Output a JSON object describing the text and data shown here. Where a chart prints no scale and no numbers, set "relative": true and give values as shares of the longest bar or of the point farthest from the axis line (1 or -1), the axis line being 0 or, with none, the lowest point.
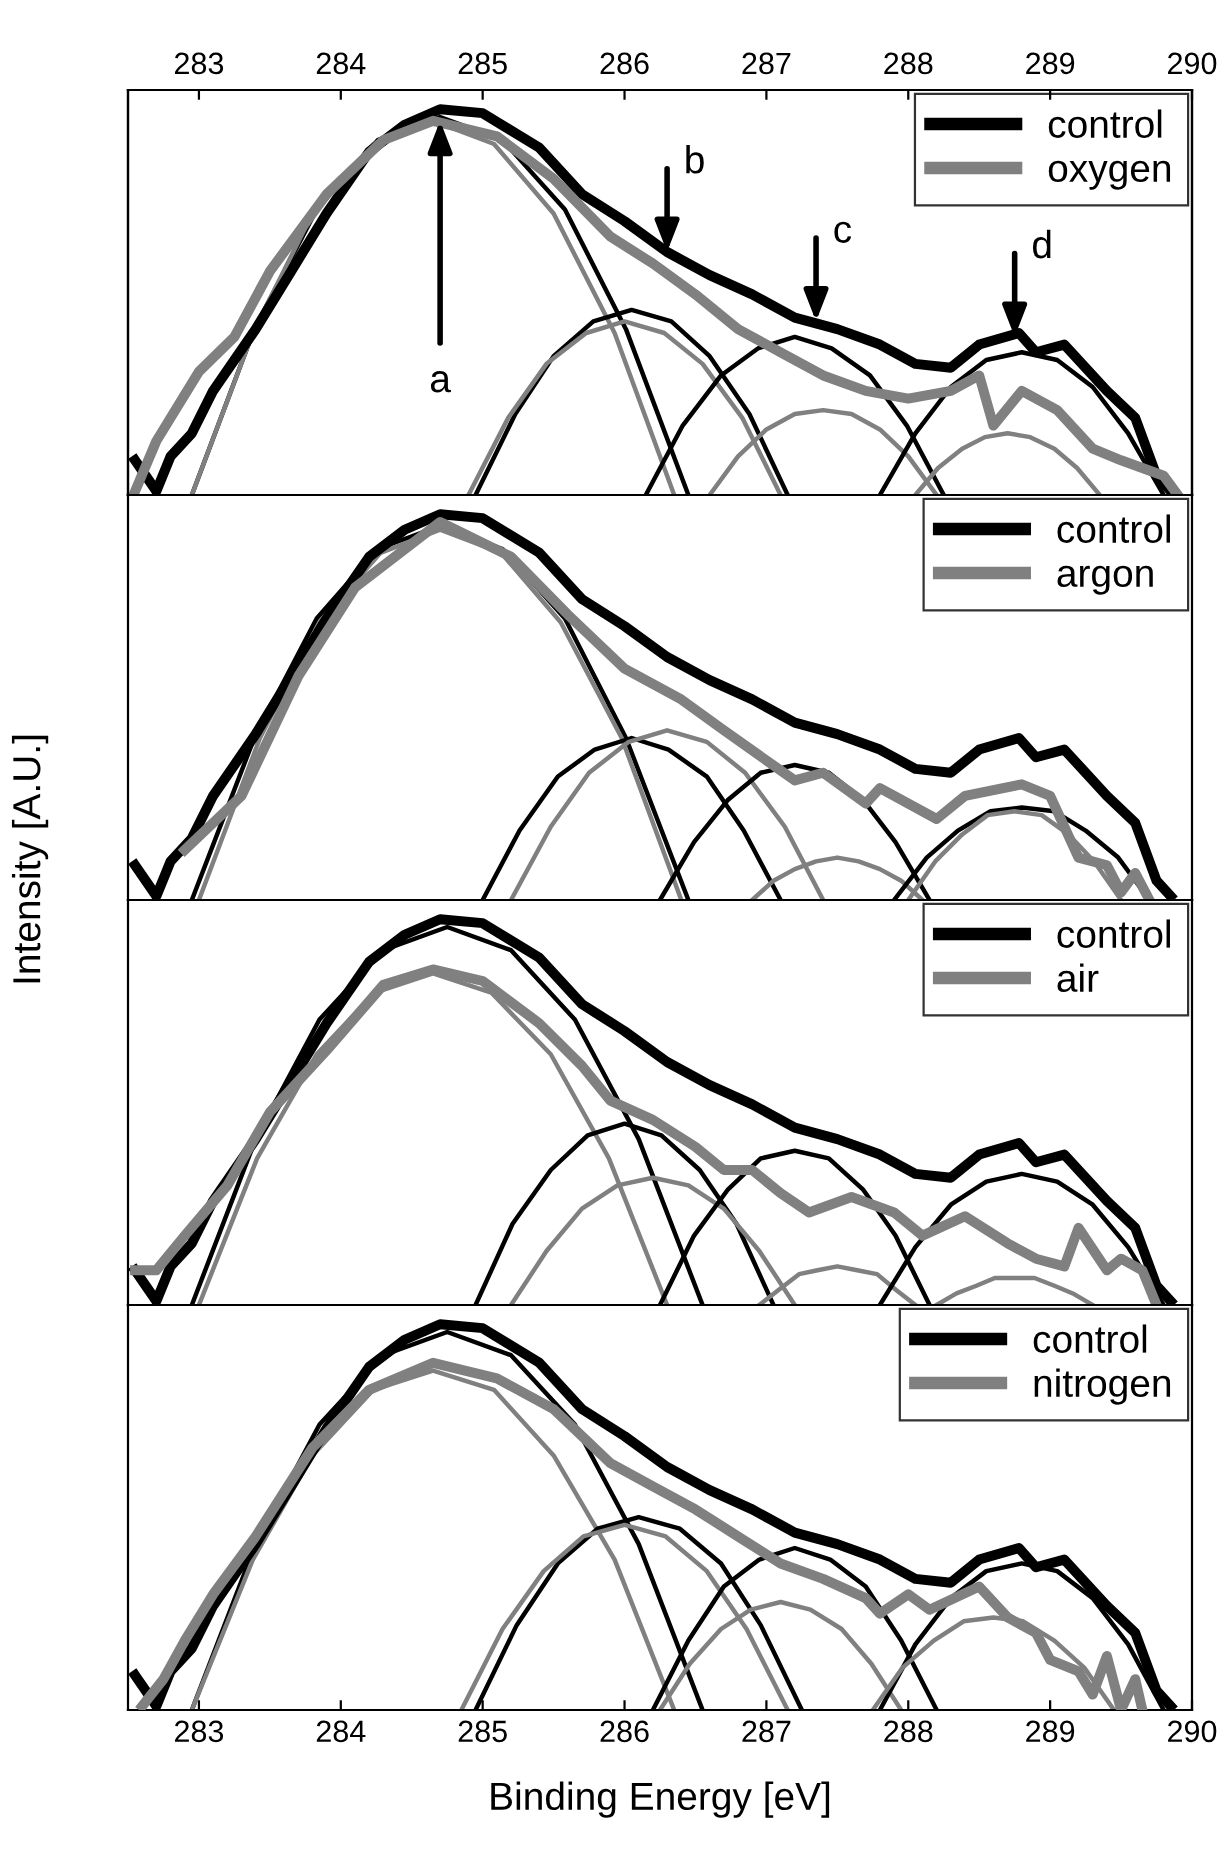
{
  "chart_data": [
    {
      "type": "line",
      "relative": true,
      "xlim": [
        282.5,
        290
      ],
      "x2lim": [
        282.5,
        290
      ],
      "x2ticks": [
        283,
        284,
        285,
        286,
        287,
        288,
        289,
        290
      ],
      "tick_labels": "x2",
      "legend": "top right",
      "grid": false,
      "marker": "none",
      "line_style": "solid",
      "annotations": [
        {
          "text": "a",
          "x": 284.7,
          "y": 0.97
        },
        {
          "text": "b",
          "x": 286.3,
          "y": 0.63
        },
        {
          "text": "c",
          "x": 287.35,
          "y": 0.45
        },
        {
          "text": "d",
          "x": 288.75,
          "y": 0.41
        }
      ],
      "series": [
        {
          "name": "control",
          "color": "#000000",
          "x": [
            282.55,
            282.7,
            282.8,
            282.95,
            283.1,
            283.4,
            283.65,
            283.9,
            284.2,
            284.45,
            284.7,
            285.0,
            285.4,
            285.7,
            286.0,
            286.3,
            286.6,
            286.9,
            287.2,
            287.5,
            287.8,
            288.05,
            288.3,
            288.5,
            288.78,
            288.9,
            289.1,
            289.4,
            289.6,
            289.75,
            289.85
          ],
          "values": [
            0.09,
            0.01,
            0.1,
            0.16,
            0.27,
            0.43,
            0.58,
            0.73,
            0.89,
            0.96,
            1.0,
            0.99,
            0.9,
            0.78,
            0.71,
            0.63,
            0.57,
            0.52,
            0.46,
            0.43,
            0.39,
            0.34,
            0.33,
            0.39,
            0.42,
            0.37,
            0.39,
            0.27,
            0.2,
            0.05,
            0.01
          ]
        },
        {
          "name": "oxygen",
          "color": "#808080",
          "x": [
            282.55,
            282.7,
            283.0,
            283.25,
            283.5,
            283.9,
            284.3,
            284.65,
            285.1,
            285.5,
            285.9,
            286.2,
            286.5,
            286.8,
            287.1,
            287.4,
            287.7,
            288.0,
            288.3,
            288.5,
            288.6,
            288.8,
            289.05,
            289.3,
            289.5,
            289.65,
            289.8,
            289.9
          ],
          "values": [
            0.01,
            0.14,
            0.32,
            0.41,
            0.58,
            0.78,
            0.92,
            0.97,
            0.93,
            0.82,
            0.67,
            0.6,
            0.52,
            0.43,
            0.37,
            0.31,
            0.27,
            0.25,
            0.27,
            0.31,
            0.18,
            0.27,
            0.22,
            0.12,
            0.09,
            0.07,
            0.05,
            0.0
          ]
        },
        {
          "color": "#000000",
          "x": [
            282.95,
            283.39,
            283.83,
            284.26,
            284.7,
            285.14,
            285.58,
            286.01,
            286.45
          ],
          "values": [
            0,
            0.43,
            0.74,
            0.92,
            0.98,
            0.92,
            0.74,
            0.43,
            0
          ]
        },
        {
          "color": "#808080",
          "x": [
            282.95,
            283.38,
            283.8,
            284.23,
            284.65,
            285.08,
            285.5,
            285.93,
            286.35
          ],
          "values": [
            0,
            0.42,
            0.73,
            0.91,
            0.97,
            0.91,
            0.73,
            0.42,
            0
          ]
        },
        {
          "color": "#000000",
          "x": [
            284.95,
            285.23,
            285.5,
            285.78,
            286.05,
            286.33,
            286.6,
            286.88,
            287.15
          ],
          "values": [
            0,
            0.21,
            0.36,
            0.45,
            0.48,
            0.45,
            0.36,
            0.21,
            0
          ]
        },
        {
          "color": "#808080",
          "x": [
            284.9,
            285.18,
            285.45,
            285.73,
            286.0,
            286.28,
            286.55,
            286.83,
            287.1
          ],
          "values": [
            0,
            0.2,
            0.34,
            0.42,
            0.45,
            0.42,
            0.34,
            0.2,
            0
          ]
        },
        {
          "color": "#000000",
          "x": [
            286.15,
            286.41,
            286.68,
            286.94,
            287.2,
            287.46,
            287.73,
            287.99,
            288.25
          ],
          "values": [
            0,
            0.18,
            0.31,
            0.38,
            0.41,
            0.38,
            0.31,
            0.18,
            0
          ]
        },
        {
          "color": "#808080",
          "x": [
            286.6,
            286.8,
            287.0,
            287.2,
            287.4,
            287.6,
            287.8,
            288.0,
            288.2
          ],
          "values": [
            0,
            0.1,
            0.17,
            0.21,
            0.22,
            0.21,
            0.17,
            0.1,
            0
          ]
        },
        {
          "color": "#000000",
          "x": [
            287.8,
            288.05,
            288.3,
            288.55,
            288.8,
            289.05,
            289.3,
            289.55,
            289.8
          ],
          "values": [
            0,
            0.16,
            0.28,
            0.35,
            0.37,
            0.35,
            0.28,
            0.16,
            0
          ]
        },
        {
          "color": "#808080",
          "x": [
            288.05,
            288.21,
            288.38,
            288.54,
            288.7,
            288.86,
            289.03,
            289.19,
            289.35
          ],
          "values": [
            0,
            0.07,
            0.12,
            0.15,
            0.16,
            0.15,
            0.12,
            0.07,
            0
          ]
        }
      ]
    },
    {
      "type": "line",
      "relative": true,
      "ylabel": "Intensity [A.U.]",
      "xlim": [
        282.5,
        290
      ],
      "tick_labels": false,
      "legend": "top right",
      "grid": false,
      "marker": "none",
      "line_style": "solid",
      "series": [
        {
          "name": "control",
          "color": "#000000",
          "x": [
            282.55,
            282.7,
            282.8,
            282.95,
            283.1,
            283.4,
            283.65,
            283.9,
            284.2,
            284.45,
            284.7,
            285.0,
            285.4,
            285.7,
            286.0,
            286.3,
            286.6,
            286.9,
            287.2,
            287.5,
            287.8,
            288.05,
            288.3,
            288.5,
            288.78,
            288.9,
            289.1,
            289.4,
            289.6,
            289.75,
            289.85
          ],
          "values": [
            0.09,
            0.01,
            0.1,
            0.16,
            0.27,
            0.43,
            0.58,
            0.73,
            0.89,
            0.96,
            1.0,
            0.99,
            0.9,
            0.78,
            0.71,
            0.63,
            0.57,
            0.52,
            0.46,
            0.43,
            0.39,
            0.34,
            0.33,
            0.39,
            0.42,
            0.37,
            0.39,
            0.27,
            0.2,
            0.05,
            0.01
          ]
        },
        {
          "name": "argon",
          "color": "#808080",
          "x": [
            282.9,
            283.3,
            283.7,
            284.1,
            284.7,
            285.2,
            285.6,
            286.0,
            286.4,
            286.7,
            287.2,
            287.4,
            287.7,
            287.8,
            288.2,
            288.4,
            288.8,
            289.0,
            289.2,
            289.4,
            289.5,
            289.6,
            289.7
          ],
          "values": [
            0.13,
            0.27,
            0.58,
            0.81,
            0.98,
            0.89,
            0.74,
            0.6,
            0.52,
            0.44,
            0.31,
            0.33,
            0.25,
            0.29,
            0.21,
            0.27,
            0.3,
            0.27,
            0.11,
            0.09,
            0.02,
            0.07,
            0.0
          ]
        },
        {
          "color": "#000000",
          "x": [
            282.95,
            283.39,
            283.83,
            284.26,
            284.7,
            285.14,
            285.58,
            286.01,
            286.45
          ],
          "values": [
            0,
            0.42,
            0.73,
            0.91,
            0.97,
            0.91,
            0.73,
            0.42,
            0
          ]
        },
        {
          "color": "#808080",
          "x": [
            283.0,
            283.43,
            283.85,
            284.28,
            284.7,
            285.13,
            285.55,
            285.98,
            286.4
          ],
          "values": [
            0,
            0.42,
            0.72,
            0.9,
            0.96,
            0.9,
            0.72,
            0.42,
            0
          ]
        },
        {
          "color": "#000000",
          "x": [
            285.0,
            285.26,
            285.53,
            285.79,
            286.05,
            286.31,
            286.58,
            286.84,
            287.1
          ],
          "values": [
            0,
            0.18,
            0.32,
            0.39,
            0.42,
            0.39,
            0.32,
            0.18,
            0
          ]
        },
        {
          "color": "#808080",
          "x": [
            285.2,
            285.48,
            285.75,
            286.03,
            286.3,
            286.58,
            286.85,
            287.13,
            287.4
          ],
          "values": [
            0,
            0.19,
            0.33,
            0.41,
            0.44,
            0.41,
            0.33,
            0.19,
            0
          ]
        },
        {
          "color": "#000000",
          "x": [
            286.25,
            286.49,
            286.73,
            286.96,
            287.2,
            287.44,
            287.68,
            287.91,
            288.15
          ],
          "values": [
            0,
            0.15,
            0.26,
            0.33,
            0.35,
            0.33,
            0.26,
            0.15,
            0
          ]
        },
        {
          "color": "#808080",
          "x": [
            286.9,
            287.05,
            287.2,
            287.35,
            287.5,
            287.65,
            287.8,
            287.95,
            288.1
          ],
          "values": [
            0,
            0.05,
            0.08,
            0.1,
            0.11,
            0.1,
            0.08,
            0.05,
            0
          ]
        },
        {
          "color": "#000000",
          "x": [
            287.9,
            288.13,
            288.35,
            288.58,
            288.8,
            289.03,
            289.25,
            289.48,
            289.7
          ],
          "values": [
            0,
            0.11,
            0.18,
            0.23,
            0.24,
            0.23,
            0.18,
            0.11,
            0
          ]
        },
        {
          "color": "#808080",
          "x": [
            288.0,
            288.19,
            288.38,
            288.56,
            288.75,
            288.94,
            289.13,
            289.31,
            289.5
          ],
          "values": [
            0,
            0.1,
            0.17,
            0.22,
            0.23,
            0.22,
            0.17,
            0.1,
            0
          ]
        }
      ]
    },
    {
      "type": "line",
      "relative": true,
      "xlim": [
        282.5,
        290
      ],
      "tick_labels": false,
      "legend": "top right",
      "grid": false,
      "marker": "none",
      "line_style": "solid",
      "series": [
        {
          "name": "control",
          "color": "#000000",
          "x": [
            282.55,
            282.7,
            282.8,
            282.95,
            283.1,
            283.4,
            283.65,
            283.9,
            284.2,
            284.45,
            284.7,
            285.0,
            285.4,
            285.7,
            286.0,
            286.3,
            286.6,
            286.9,
            287.2,
            287.5,
            287.8,
            288.05,
            288.3,
            288.5,
            288.78,
            288.9,
            289.1,
            289.4,
            289.6,
            289.75,
            289.85
          ],
          "values": [
            0.09,
            0.01,
            0.1,
            0.16,
            0.27,
            0.43,
            0.58,
            0.73,
            0.89,
            0.96,
            1.0,
            0.99,
            0.9,
            0.78,
            0.71,
            0.63,
            0.57,
            0.52,
            0.46,
            0.43,
            0.39,
            0.34,
            0.33,
            0.39,
            0.42,
            0.37,
            0.39,
            0.27,
            0.2,
            0.05,
            0.01
          ]
        },
        {
          "name": "air",
          "color": "#808080",
          "x": [
            282.55,
            282.7,
            282.9,
            283.2,
            283.5,
            283.9,
            284.3,
            284.65,
            285.0,
            285.4,
            285.7,
            285.9,
            286.2,
            286.5,
            286.7,
            286.9,
            287.1,
            287.3,
            287.6,
            287.9,
            288.1,
            288.4,
            288.7,
            288.9,
            289.1,
            289.2,
            289.4,
            289.5,
            289.65,
            289.75
          ],
          "values": [
            0.09,
            0.09,
            0.18,
            0.31,
            0.5,
            0.66,
            0.83,
            0.87,
            0.84,
            0.73,
            0.62,
            0.53,
            0.48,
            0.41,
            0.35,
            0.35,
            0.29,
            0.24,
            0.28,
            0.24,
            0.18,
            0.23,
            0.16,
            0.12,
            0.1,
            0.2,
            0.09,
            0.12,
            0.09,
            0.0
          ]
        },
        {
          "color": "#000000",
          "x": [
            282.95,
            283.4,
            283.85,
            284.3,
            284.75,
            285.2,
            285.65,
            286.1,
            286.55
          ],
          "values": [
            0,
            0.43,
            0.74,
            0.92,
            0.98,
            0.92,
            0.74,
            0.43,
            0
          ]
        },
        {
          "color": "#808080",
          "x": [
            283.0,
            283.41,
            283.83,
            284.24,
            284.65,
            285.06,
            285.48,
            285.89,
            286.3
          ],
          "values": [
            0,
            0.38,
            0.65,
            0.81,
            0.86,
            0.81,
            0.65,
            0.38,
            0
          ]
        },
        {
          "color": "#000000",
          "x": [
            284.95,
            285.21,
            285.48,
            285.74,
            286.0,
            286.26,
            286.53,
            286.79,
            287.05
          ],
          "values": [
            0,
            0.21,
            0.35,
            0.44,
            0.47,
            0.44,
            0.35,
            0.21,
            0
          ]
        },
        {
          "color": "#808080",
          "x": [
            285.2,
            285.45,
            285.7,
            285.95,
            286.2,
            286.45,
            286.7,
            286.95,
            287.2
          ],
          "values": [
            0,
            0.14,
            0.25,
            0.31,
            0.33,
            0.31,
            0.25,
            0.14,
            0
          ]
        },
        {
          "color": "#000000",
          "x": [
            286.25,
            286.49,
            286.73,
            286.96,
            287.2,
            287.44,
            287.68,
            287.91,
            288.15
          ],
          "values": [
            0,
            0.18,
            0.3,
            0.38,
            0.4,
            0.38,
            0.3,
            0.18,
            0
          ]
        },
        {
          "color": "#808080",
          "x": [
            286.95,
            287.09,
            287.23,
            287.36,
            287.5,
            287.64,
            287.78,
            287.91,
            288.05
          ],
          "values": [
            0,
            0.04,
            0.08,
            0.09,
            0.1,
            0.09,
            0.08,
            0.04,
            0
          ]
        },
        {
          "color": "#000000",
          "x": [
            287.8,
            288.05,
            288.3,
            288.55,
            288.8,
            289.05,
            289.3,
            289.55,
            289.8
          ],
          "values": [
            0,
            0.15,
            0.26,
            0.32,
            0.34,
            0.32,
            0.26,
            0.15,
            0
          ]
        },
        {
          "color": "#808080",
          "x": [
            288.2,
            288.34,
            288.48,
            288.61,
            288.75,
            288.89,
            289.03,
            289.16,
            289.3
          ],
          "values": [
            0,
            0.03,
            0.05,
            0.07,
            0.07,
            0.07,
            0.05,
            0.03,
            0
          ]
        }
      ]
    },
    {
      "type": "line",
      "relative": true,
      "xlabel": "Binding Energy [eV]",
      "xlim": [
        282.5,
        290
      ],
      "xticks": [
        283,
        284,
        285,
        286,
        287,
        288,
        289,
        290
      ],
      "tick_labels": "x",
      "legend": "top right",
      "grid": false,
      "marker": "none",
      "line_style": "solid",
      "series": [
        {
          "name": "control",
          "color": "#000000",
          "x": [
            282.55,
            282.7,
            282.8,
            282.95,
            283.1,
            283.4,
            283.65,
            283.9,
            284.2,
            284.45,
            284.7,
            285.0,
            285.4,
            285.7,
            286.0,
            286.3,
            286.6,
            286.9,
            287.2,
            287.5,
            287.8,
            288.05,
            288.3,
            288.5,
            288.78,
            288.9,
            289.1,
            289.4,
            289.6,
            289.75,
            289.85
          ],
          "values": [
            0.09,
            0.01,
            0.1,
            0.16,
            0.27,
            0.43,
            0.58,
            0.73,
            0.89,
            0.96,
            1.0,
            0.99,
            0.9,
            0.78,
            0.71,
            0.63,
            0.57,
            0.52,
            0.46,
            0.43,
            0.39,
            0.34,
            0.33,
            0.39,
            0.42,
            0.37,
            0.39,
            0.27,
            0.2,
            0.05,
            0.01
          ]
        },
        {
          "name": "nitrogen",
          "color": "#808080",
          "x": [
            282.6,
            282.75,
            282.9,
            283.1,
            283.4,
            283.8,
            284.2,
            284.65,
            285.1,
            285.5,
            285.9,
            286.2,
            286.5,
            286.8,
            287.1,
            287.4,
            287.7,
            287.8,
            288.0,
            288.15,
            288.5,
            288.7,
            288.9,
            289.0,
            289.2,
            289.3,
            289.4,
            289.5,
            289.6,
            289.65
          ],
          "values": [
            0.01,
            0.08,
            0.18,
            0.3,
            0.45,
            0.68,
            0.83,
            0.9,
            0.86,
            0.78,
            0.64,
            0.58,
            0.52,
            0.45,
            0.38,
            0.34,
            0.29,
            0.25,
            0.3,
            0.26,
            0.32,
            0.24,
            0.2,
            0.13,
            0.1,
            0.04,
            0.14,
            0.0,
            0.08,
            0.0
          ]
        },
        {
          "color": "#000000",
          "x": [
            282.95,
            283.4,
            283.85,
            284.3,
            284.75,
            285.2,
            285.65,
            286.1,
            286.55
          ],
          "values": [
            0,
            0.43,
            0.74,
            0.92,
            0.98,
            0.92,
            0.74,
            0.43,
            0
          ]
        },
        {
          "color": "#808080",
          "x": [
            282.95,
            283.38,
            283.8,
            284.23,
            284.65,
            285.08,
            285.5,
            285.93,
            286.35
          ],
          "values": [
            0,
            0.39,
            0.66,
            0.83,
            0.88,
            0.83,
            0.66,
            0.39,
            0
          ]
        },
        {
          "color": "#000000",
          "x": [
            284.95,
            285.24,
            285.53,
            285.81,
            286.1,
            286.39,
            286.68,
            286.96,
            287.25
          ],
          "values": [
            0,
            0.22,
            0.38,
            0.47,
            0.5,
            0.47,
            0.38,
            0.22,
            0
          ]
        },
        {
          "color": "#808080",
          "x": [
            284.85,
            285.14,
            285.43,
            285.71,
            286.0,
            286.29,
            286.58,
            286.86,
            287.15
          ],
          "values": [
            0,
            0.21,
            0.36,
            0.45,
            0.48,
            0.45,
            0.36,
            0.21,
            0
          ]
        },
        {
          "color": "#000000",
          "x": [
            286.2,
            286.45,
            286.7,
            286.95,
            287.2,
            287.45,
            287.7,
            287.95,
            288.2
          ],
          "values": [
            0,
            0.18,
            0.32,
            0.39,
            0.42,
            0.39,
            0.32,
            0.18,
            0
          ]
        },
        {
          "color": "#808080",
          "x": [
            286.25,
            286.46,
            286.68,
            286.89,
            287.1,
            287.31,
            287.53,
            287.74,
            287.95
          ],
          "values": [
            0,
            0.12,
            0.21,
            0.26,
            0.28,
            0.26,
            0.21,
            0.12,
            0
          ]
        },
        {
          "color": "#000000",
          "x": [
            287.8,
            288.05,
            288.3,
            288.55,
            288.8,
            289.05,
            289.3,
            289.55,
            289.8
          ],
          "values": [
            0,
            0.17,
            0.29,
            0.36,
            0.38,
            0.36,
            0.29,
            0.17,
            0
          ]
        },
        {
          "color": "#808080",
          "x": [
            287.75,
            287.96,
            288.18,
            288.39,
            288.6,
            288.81,
            289.03,
            289.24,
            289.45
          ],
          "values": [
            0,
            0.11,
            0.18,
            0.23,
            0.24,
            0.23,
            0.18,
            0.11,
            0
          ]
        }
      ]
    }
  ]
}
